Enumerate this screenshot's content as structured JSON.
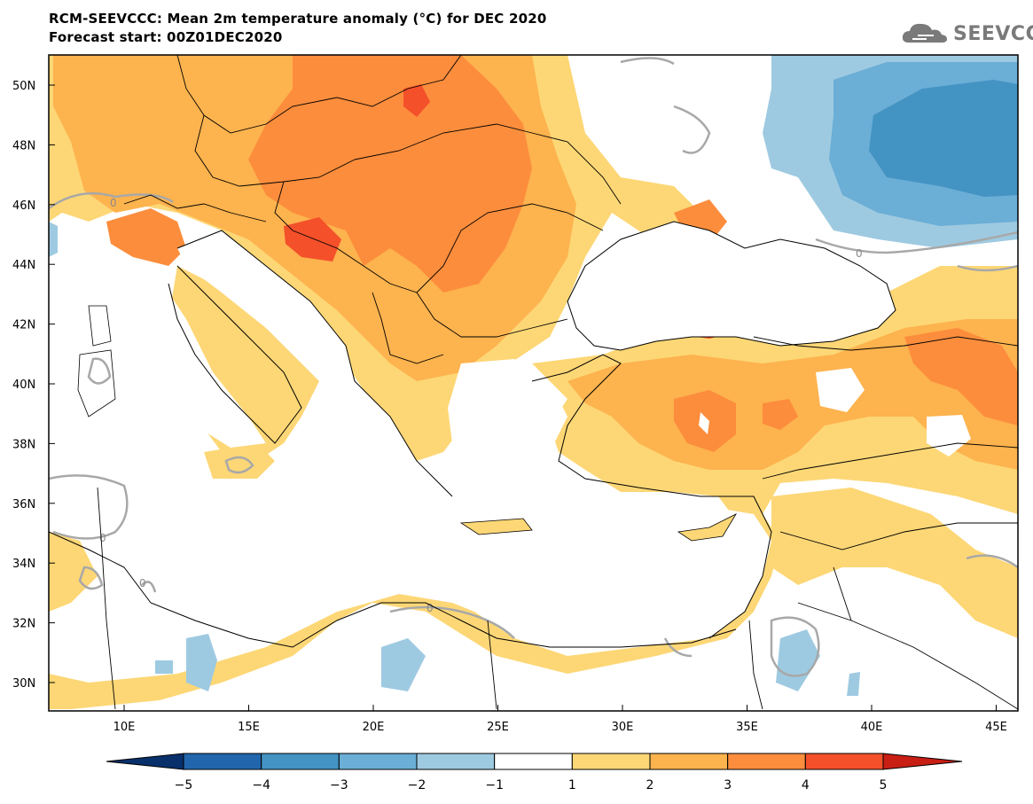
{
  "title_line1": "RCM-SEEVCCC: Mean 2m temperature anomaly (°C) for DEC 2020",
  "title_line2": "Forecast start: 00Z01DEC2020",
  "logo_text": "SEEVCCC",
  "map": {
    "lat_ticks": [
      "50N",
      "48N",
      "46N",
      "44N",
      "42N",
      "40N",
      "38N",
      "36N",
      "34N",
      "32N",
      "30N"
    ],
    "lon_ticks": [
      "10E",
      "15E",
      "20E",
      "25E",
      "30E",
      "35E",
      "40E",
      "45E"
    ],
    "contour_label": "0"
  },
  "colorbar": {
    "ticks": [
      "-5",
      "-4",
      "-3",
      "-2",
      "-1",
      "1",
      "2",
      "3",
      "4",
      "5"
    ],
    "colors": [
      "#08306b",
      "#2166ac",
      "#4393c3",
      "#6baed6",
      "#9ecae1",
      "#ffffff",
      "#fdd776",
      "#fdb34e",
      "#fc8d3c",
      "#f4502a",
      "#c81e14"
    ]
  }
}
